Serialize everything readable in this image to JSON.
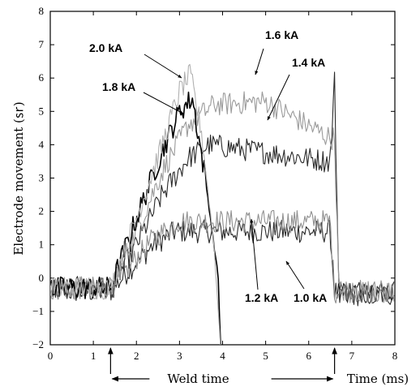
{
  "chart_data": {
    "type": "line",
    "xlabel": "Time (ms)",
    "ylabel": "Electrode movement (㏛)",
    "xlim": [
      0,
      8
    ],
    "ylim": [
      -2,
      8
    ],
    "x_ticks": [
      "0",
      "1",
      "2",
      "3",
      "4",
      "5",
      "6",
      "7",
      "8"
    ],
    "y_ticks": [
      "−2",
      "−1",
      "0",
      "1",
      "2",
      "3",
      "4",
      "5",
      "6",
      "7",
      "8"
    ],
    "grid": false,
    "weld_time": {
      "label": "Weld time",
      "start": 1.4,
      "end": 6.6
    },
    "series": [
      {
        "name": "1.0 kA",
        "color": "#2a2a2a",
        "level": 1.4,
        "collapse_x": null,
        "x": [
          0,
          1.4,
          1.8,
          2.4,
          2.9,
          6.5,
          6.6,
          6.7,
          8
        ],
        "y": [
          -0.4,
          -0.4,
          0.2,
          1.0,
          1.4,
          1.4,
          -0.4,
          -0.5,
          -0.5
        ]
      },
      {
        "name": "1.2 kA",
        "color": "#909090",
        "level": 1.7,
        "collapse_x": null,
        "x": [
          0,
          1.4,
          1.8,
          2.4,
          3.0,
          6.5,
          6.6,
          6.7,
          8
        ],
        "y": [
          -0.3,
          -0.3,
          0.3,
          1.2,
          1.7,
          1.7,
          -0.4,
          -0.4,
          -0.4
        ]
      },
      {
        "name": "1.4 kA",
        "color": "#2a2a2a",
        "level": 4.0,
        "collapse_x": null,
        "x": [
          0,
          1.4,
          2.0,
          2.6,
          3.2,
          3.7,
          6.5,
          6.6,
          6.7,
          8
        ],
        "y": [
          -0.3,
          -0.3,
          1.0,
          2.5,
          3.6,
          4.0,
          3.5,
          5.9,
          -0.4,
          -0.4
        ]
      },
      {
        "name": "1.6 kA",
        "color": "#9a9a9a",
        "level": 5.1,
        "collapse_x": null,
        "x": [
          0,
          1.4,
          2.0,
          2.6,
          3.2,
          3.8,
          5.0,
          6.5,
          6.6,
          6.7,
          8
        ],
        "y": [
          -0.3,
          -0.3,
          1.4,
          3.2,
          4.6,
          5.2,
          5.3,
          4.2,
          4.2,
          -0.4,
          -0.4
        ]
      },
      {
        "name": "1.8 kA",
        "color": "#000000",
        "level": null,
        "collapse_x": 3.9,
        "x": [
          0,
          1.4,
          2.0,
          2.6,
          3.0,
          3.3,
          3.6,
          3.9,
          3.95
        ],
        "y": [
          -0.3,
          -0.3,
          1.8,
          3.8,
          5.0,
          5.4,
          3.0,
          0.0,
          -2.0
        ]
      },
      {
        "name": "2.0 kA",
        "color": "#b0b0b0",
        "level": null,
        "collapse_x": 3.9,
        "x": [
          0,
          1.4,
          2.0,
          2.6,
          3.0,
          3.25,
          3.5,
          3.8,
          3.95
        ],
        "y": [
          -0.3,
          -0.3,
          1.8,
          4.0,
          5.6,
          6.1,
          4.5,
          1.0,
          -2.0
        ]
      }
    ],
    "annotations": [
      {
        "text": "2.0 kA",
        "x": 3.1,
        "y": 6.1
      },
      {
        "text": "1.8 kA",
        "x": 3.1,
        "y": 5.0
      },
      {
        "text": "1.6 kA",
        "x": 4.7,
        "y": 5.8
      },
      {
        "text": "1.4 kA",
        "x": 5.0,
        "y": 4.4
      },
      {
        "text": "1.2 kA",
        "x": 4.7,
        "y": 1.6
      },
      {
        "text": "1.0 kA",
        "x": 5.5,
        "y": 0.5
      }
    ]
  }
}
